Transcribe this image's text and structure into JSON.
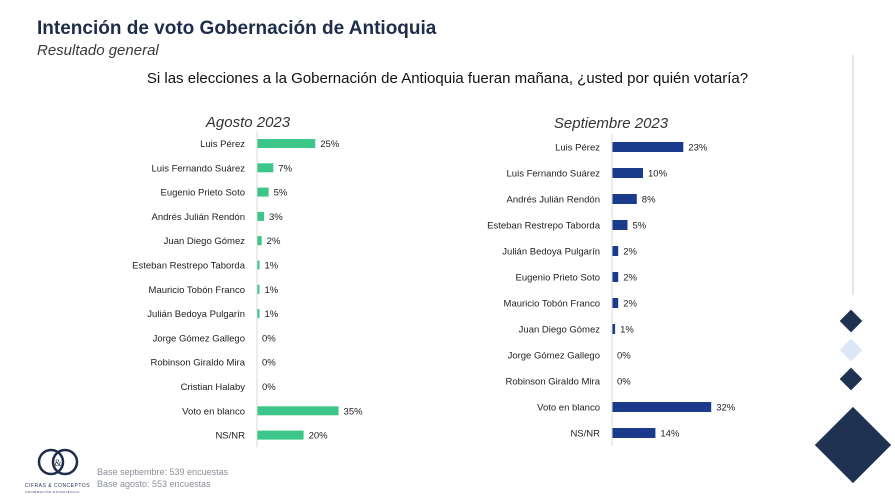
{
  "header": {
    "title": "Intención de voto Gobernación de Antioquia",
    "subtitle": "Resultado general",
    "question": "Si las elecciones a la Gobernación de Antioquia fueran mañana, ¿usted por quién votaría?"
  },
  "footer": {
    "base_sept": "Base septiembre: 539 encuestas",
    "base_aug": "Base agosto: 553 encuestas",
    "logo_name": "CIFRAS & CONCEPTOS",
    "logo_tagline": "INFORMACIÓN ESTRATÉGICA"
  },
  "colors": {
    "august_bar": "#3cc68a",
    "september_bar": "#1b3a8c",
    "diamond_dark": "#1f3252",
    "diamond_light": "#dbe7f5"
  },
  "chart_data": [
    {
      "type": "bar",
      "orientation": "horizontal",
      "title": "Agosto 2023",
      "categories": [
        "Luis Pérez",
        "Luis Fernando Suárez",
        "Eugenio Prieto Soto",
        "Andrés Julián Rendón",
        "Juan Diego Gómez",
        "Esteban Restrepo Taborda",
        "Mauricio Tobón Franco",
        "Julián Bedoya Pulgarín",
        "Jorge Gómez Gallego",
        "Robinson Giraldo Mira",
        "Cristian Halaby",
        "Voto en blanco",
        "NS/NR"
      ],
      "values": [
        25,
        7,
        5,
        3,
        2,
        1,
        1,
        1,
        0,
        0,
        0,
        35,
        20
      ],
      "value_labels": [
        "25%",
        "7%",
        "5%",
        "3%",
        "2%",
        "1%",
        "1%",
        "1%",
        "0%",
        "0%",
        "0%",
        "35%",
        "20%"
      ],
      "color": "#3cc68a"
    },
    {
      "type": "bar",
      "orientation": "horizontal",
      "title": "Septiembre 2023",
      "categories": [
        "Luis Pérez",
        "Luis Fernando Suárez",
        "Andrés Julián Rendón",
        "Esteban Restrepo Taborda",
        "Julián Bedoya Pulgarín",
        "Eugenio Prieto Soto",
        "Mauricio Tobón Franco",
        "Juan Diego Gómez",
        "Jorge Gómez Gallego",
        "Robinson Giraldo Mira",
        "Voto en blanco",
        "NS/NR"
      ],
      "values": [
        23,
        10,
        8,
        5,
        2,
        2,
        2,
        1,
        0,
        0,
        32,
        14
      ],
      "value_labels": [
        "23%",
        "10%",
        "8%",
        "5%",
        "2%",
        "2%",
        "2%",
        "1%",
        "0%",
        "0%",
        "32%",
        "14%"
      ],
      "color": "#1b3a8c"
    }
  ]
}
